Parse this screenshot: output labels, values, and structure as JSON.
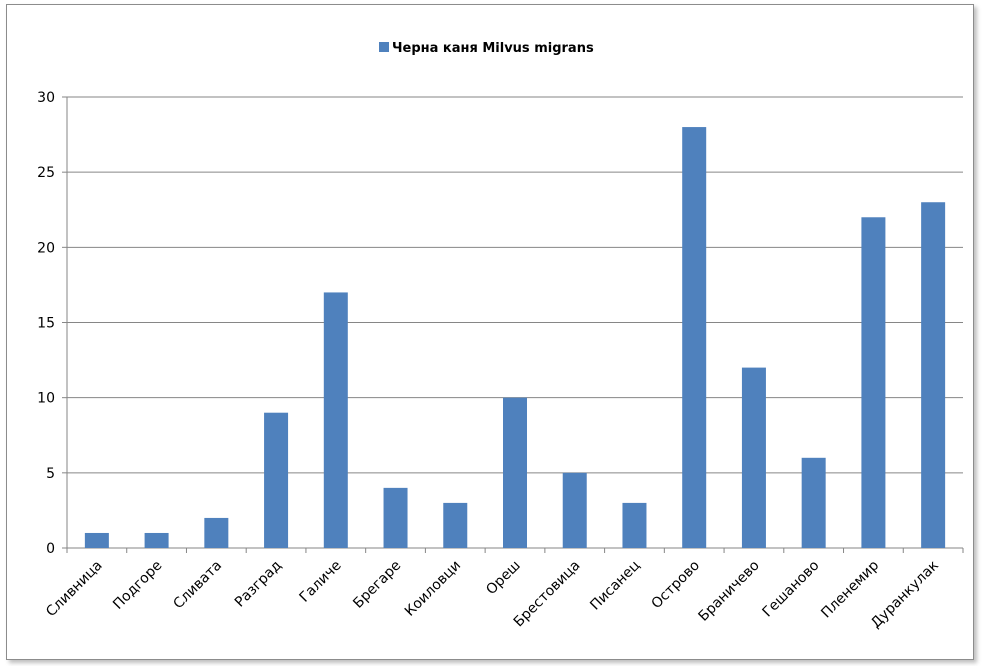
{
  "chart_data": {
    "type": "bar",
    "categories": [
      "Сливница",
      "Подгоре",
      "Сливата",
      "Разград",
      "Галиче",
      "Брегаре",
      "Коиловци",
      "Ореш",
      "Брестовица",
      "Писанец",
      "Острово",
      "Браничево",
      "Гешаново",
      "Пленемир",
      "Дуранкулак"
    ],
    "series": [
      {
        "name": "Черна каня Milvus migrans",
        "color": "#4f81bd",
        "values": [
          1,
          1,
          2,
          9,
          17,
          4,
          3,
          10,
          5,
          3,
          28,
          12,
          6,
          22,
          23
        ]
      }
    ],
    "yticks": [
      "0",
      "5",
      "10",
      "15",
      "20",
      "25",
      "30"
    ],
    "ylim": [
      0,
      30
    ],
    "grid": true,
    "legend_position": "top"
  }
}
